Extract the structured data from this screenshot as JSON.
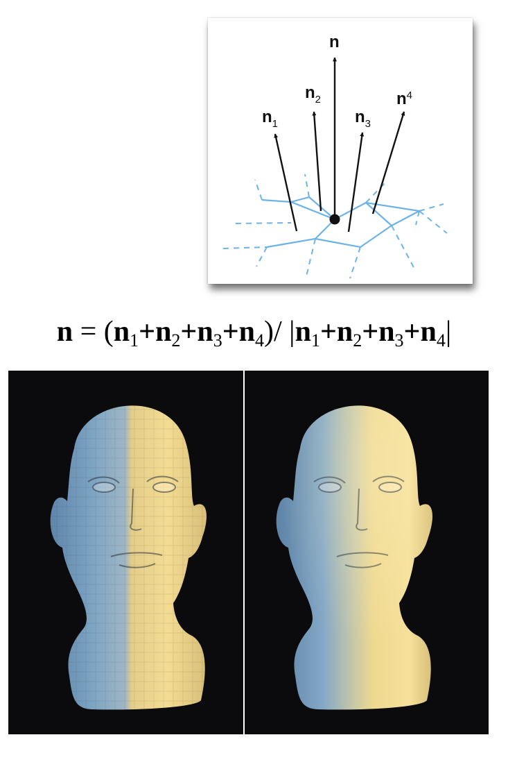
{
  "diagram": {
    "labels": {
      "n": "n",
      "n1": "n",
      "n1_sub": "1",
      "n2": "n",
      "n2_sub": "2",
      "n3": "n",
      "n3_sub": "3",
      "n4": "n",
      "n4_sub": "4"
    },
    "colors": {
      "mesh": "#6db3e6",
      "arrow": "#111111"
    }
  },
  "formula": {
    "lhs": "n",
    "eq": " = (",
    "t1": "n",
    "s1": "1",
    "p1": "+",
    "t2": "n",
    "s2": "2",
    "p2": "+",
    "t3": "n",
    "s3": "3",
    "p3": "+",
    "t4": "n",
    "s4": "4",
    "mid": ")/ |",
    "u1": "n",
    "v1": "1",
    "q1": "+",
    "u2": "n",
    "v2": "2",
    "q2": "+",
    "u3": "n",
    "v3": "3",
    "q3": "+",
    "u4": "n",
    "v4": "4",
    "end": "|"
  },
  "renders": {
    "left": "flat-shaded-head",
    "right": "smooth-shaded-head",
    "colors": {
      "background": "#0b0b0d",
      "light": "#f2d98a",
      "shadow": "#6f93b5"
    }
  }
}
